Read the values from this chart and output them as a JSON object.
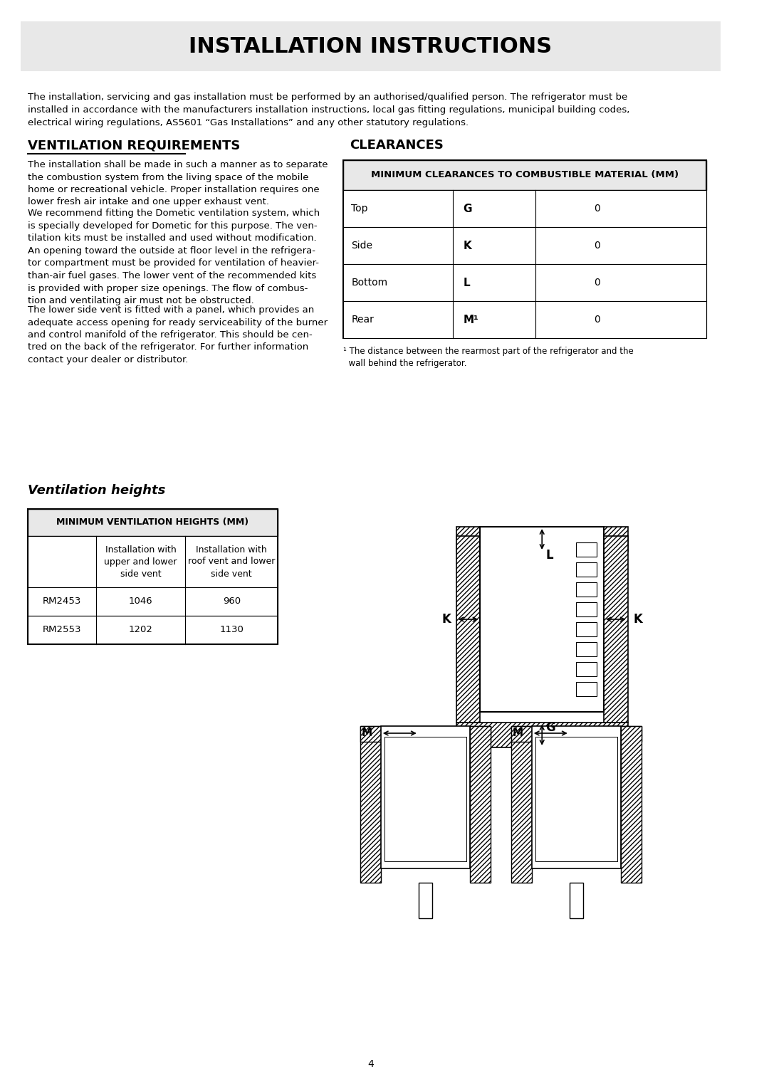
{
  "title": "INSTALLATION INSTRUCTIONS",
  "title_bg": "#e8e8e8",
  "page_bg": "#ffffff",
  "intro_text": "The installation, servicing and gas installation must be performed by an authorised/qualified person. The refrigerator must be\ninstalled in accordance with the manufacturers installation instructions, local gas fitting regulations, municipal building codes,\nelectrical wiring regulations, AS5601 “Gas Installations” and any other statutory regulations.",
  "vent_req_title": "VENTILATION REQUIREMENTS",
  "vent_req_paragraphs": [
    "The installation shall be made in such a manner as to separate\nthe combustion system from the living space of the mobile\nhome or recreational vehicle. Proper installation requires one\nlower fresh air intake and one upper exhaust vent.",
    "We recommend fitting the Dometic ventilation system, which\nis specially developed for Dometic for this purpose. The ven-\ntilation kits must be installed and used without modification.",
    "An opening toward the outside at floor level in the refrigera-\ntor compartment must be provided for ventilation of heavier-\nthan-air fuel gases. The lower vent of the recommended kits\nis provided with proper size openings. The flow of combus-\ntion and ventilating air must not be obstructed.",
    "The lower side vent is fitted with a panel, which provides an\nadequate access opening for ready serviceability of the burner\nand control manifold of the refrigerator. This should be cen-\ntred on the back of the refrigerator. For further information\ncontact your dealer or distributor."
  ],
  "clearances_title": "CLEARANCES",
  "clearances_table_header": "MINIMUM CLEARANCES TO COMBUSTIBLE MATERIAL (MM)",
  "clearances_rows": [
    [
      "Top",
      "G",
      "0"
    ],
    [
      "Side",
      "K",
      "0"
    ],
    [
      "Bottom",
      "L",
      "0"
    ],
    [
      "Rear",
      "M¹",
      "0"
    ]
  ],
  "clearances_footnote": "¹ The distance between the rearmost part of the refrigerator and the\n  wall behind the refrigerator.",
  "vent_heights_title": "Ventilation heights",
  "vent_heights_table_header": "MINIMUM VENTILATION HEIGHTS (MM)",
  "vent_heights_col1": "",
  "vent_heights_col2": "Installation with\nupper and lower\nside vent",
  "vent_heights_col3": "Installation with\nroof vent and lower\nside vent",
  "vent_heights_rows": [
    [
      "RM2453",
      "1046",
      "960"
    ],
    [
      "RM2553",
      "1202",
      "1130"
    ]
  ],
  "page_number": "4"
}
